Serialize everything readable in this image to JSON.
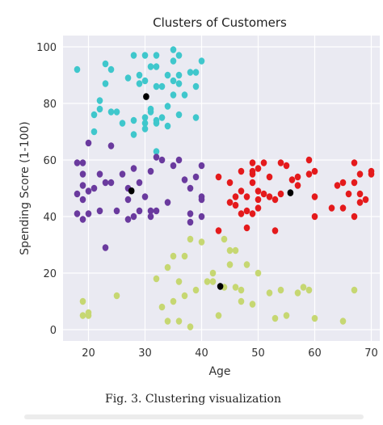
{
  "chart_data": {
    "type": "scatter",
    "title": "Clusters of Customers",
    "xlabel": "Age",
    "ylabel": "Spending Score (1-100)",
    "xlim": [
      15.5,
      71.5
    ],
    "ylim": [
      -4,
      104
    ],
    "xticks": [
      "20",
      "30",
      "40",
      "50",
      "60",
      "70"
    ],
    "yticks": [
      "0",
      "20",
      "40",
      "60",
      "80",
      "100"
    ],
    "grid": true,
    "background": "#eaeaf2",
    "series": [
      {
        "color": "#3fc7cc",
        "points": [
          [
            18,
            92
          ],
          [
            21,
            70
          ],
          [
            21,
            76
          ],
          [
            22,
            81
          ],
          [
            22,
            78
          ],
          [
            23,
            94
          ],
          [
            23,
            87
          ],
          [
            24,
            92
          ],
          [
            24,
            77
          ],
          [
            25,
            77
          ],
          [
            26,
            73
          ],
          [
            27,
            89
          ],
          [
            28,
            97
          ],
          [
            28,
            74
          ],
          [
            28,
            69
          ],
          [
            29,
            87
          ],
          [
            29,
            90
          ],
          [
            30,
            97
          ],
          [
            30,
            88
          ],
          [
            30,
            75
          ],
          [
            30,
            73
          ],
          [
            30,
            71
          ],
          [
            31,
            93
          ],
          [
            31,
            78
          ],
          [
            31,
            77
          ],
          [
            32,
            97
          ],
          [
            32,
            93
          ],
          [
            32,
            86
          ],
          [
            32,
            74
          ],
          [
            32,
            73
          ],
          [
            32,
            63
          ],
          [
            33,
            86
          ],
          [
            33,
            75
          ],
          [
            34,
            90
          ],
          [
            34,
            79
          ],
          [
            34,
            72
          ],
          [
            35,
            99
          ],
          [
            35,
            95
          ],
          [
            35,
            88
          ],
          [
            35,
            83
          ],
          [
            36,
            97
          ],
          [
            36,
            90
          ],
          [
            36,
            87
          ],
          [
            36,
            76
          ],
          [
            37,
            83
          ],
          [
            38,
            91
          ],
          [
            39,
            91
          ],
          [
            39,
            86
          ],
          [
            39,
            75
          ],
          [
            40,
            95
          ]
        ]
      },
      {
        "color": "#6a3a9e",
        "points": [
          [
            18,
            59
          ],
          [
            18,
            48
          ],
          [
            18,
            41
          ],
          [
            19,
            59
          ],
          [
            19,
            55
          ],
          [
            19,
            51
          ],
          [
            19,
            46
          ],
          [
            19,
            39
          ],
          [
            20,
            66
          ],
          [
            20,
            49
          ],
          [
            20,
            41
          ],
          [
            21,
            50
          ],
          [
            22,
            55
          ],
          [
            22,
            42
          ],
          [
            23,
            52
          ],
          [
            23,
            29
          ],
          [
            24,
            65
          ],
          [
            24,
            52
          ],
          [
            25,
            42
          ],
          [
            26,
            55
          ],
          [
            27,
            50
          ],
          [
            27,
            46
          ],
          [
            27,
            39
          ],
          [
            28,
            57
          ],
          [
            28,
            40
          ],
          [
            29,
            52
          ],
          [
            29,
            42
          ],
          [
            30,
            47
          ],
          [
            31,
            42
          ],
          [
            31,
            40
          ],
          [
            31,
            56
          ],
          [
            32,
            61
          ],
          [
            32,
            42
          ],
          [
            33,
            60
          ],
          [
            34,
            45
          ],
          [
            35,
            58
          ],
          [
            36,
            60
          ],
          [
            37,
            53
          ],
          [
            38,
            50
          ],
          [
            38,
            41
          ],
          [
            38,
            38
          ],
          [
            39,
            54
          ],
          [
            40,
            40
          ],
          [
            40,
            47
          ],
          [
            40,
            46
          ],
          [
            40,
            58
          ]
        ]
      },
      {
        "color": "#e41a1c",
        "points": [
          [
            43,
            35
          ],
          [
            43,
            54
          ],
          [
            45,
            52
          ],
          [
            45,
            45
          ],
          [
            46,
            44
          ],
          [
            46,
            47
          ],
          [
            47,
            49
          ],
          [
            47,
            56
          ],
          [
            47,
            41
          ],
          [
            48,
            42
          ],
          [
            48,
            36
          ],
          [
            48,
            47
          ],
          [
            49,
            52
          ],
          [
            49,
            59
          ],
          [
            49,
            41
          ],
          [
            49,
            56
          ],
          [
            49,
            55
          ],
          [
            50,
            46
          ],
          [
            50,
            49
          ],
          [
            50,
            57
          ],
          [
            50,
            43
          ],
          [
            51,
            59
          ],
          [
            51,
            48
          ],
          [
            52,
            54
          ],
          [
            52,
            47
          ],
          [
            53,
            46
          ],
          [
            53,
            35
          ],
          [
            54,
            59
          ],
          [
            54,
            48
          ],
          [
            55,
            58
          ],
          [
            56,
            53
          ],
          [
            57,
            54
          ],
          [
            57,
            51
          ],
          [
            59,
            60
          ],
          [
            59,
            55
          ],
          [
            60,
            40
          ],
          [
            60,
            47
          ],
          [
            60,
            56
          ],
          [
            63,
            43
          ],
          [
            64,
            51
          ],
          [
            65,
            52
          ],
          [
            65,
            43
          ],
          [
            66,
            48
          ],
          [
            67,
            59
          ],
          [
            67,
            40
          ],
          [
            67,
            52
          ],
          [
            68,
            55
          ],
          [
            68,
            48
          ],
          [
            68,
            45
          ],
          [
            69,
            46
          ],
          [
            70,
            55
          ],
          [
            70,
            56
          ]
        ]
      },
      {
        "color": "#c6d772",
        "points": [
          [
            19,
            10
          ],
          [
            19,
            5
          ],
          [
            20,
            6
          ],
          [
            20,
            5
          ],
          [
            25,
            12
          ],
          [
            32,
            18
          ],
          [
            33,
            8
          ],
          [
            34,
            22
          ],
          [
            35,
            26
          ],
          [
            35,
            10
          ],
          [
            36,
            17
          ],
          [
            37,
            26
          ],
          [
            37,
            12
          ],
          [
            38,
            32
          ],
          [
            38,
            1
          ],
          [
            40,
            31
          ],
          [
            41,
            17
          ],
          [
            42,
            20
          ],
          [
            43,
            5
          ],
          [
            44,
            15
          ],
          [
            44,
            32
          ],
          [
            45,
            28
          ],
          [
            45,
            23
          ],
          [
            46,
            15
          ],
          [
            47,
            14
          ],
          [
            47,
            10
          ],
          [
            48,
            23
          ],
          [
            49,
            9
          ],
          [
            50,
            20
          ],
          [
            52,
            13
          ],
          [
            53,
            4
          ],
          [
            54,
            14
          ],
          [
            55,
            5
          ],
          [
            57,
            13
          ],
          [
            58,
            15
          ],
          [
            59,
            14
          ],
          [
            60,
            4
          ],
          [
            65,
            3
          ],
          [
            67,
            14
          ],
          [
            46,
            28
          ],
          [
            42,
            17
          ],
          [
            39,
            14
          ],
          [
            36,
            3
          ],
          [
            34,
            3
          ]
        ]
      },
      {
        "color": "#000000",
        "points": [
          [
            30.2,
            82.4
          ],
          [
            27.6,
            49.1
          ],
          [
            43.3,
            15.3
          ],
          [
            55.7,
            48.4
          ]
        ]
      }
    ]
  },
  "caption": "Fig. 3.   Clustering visualization"
}
